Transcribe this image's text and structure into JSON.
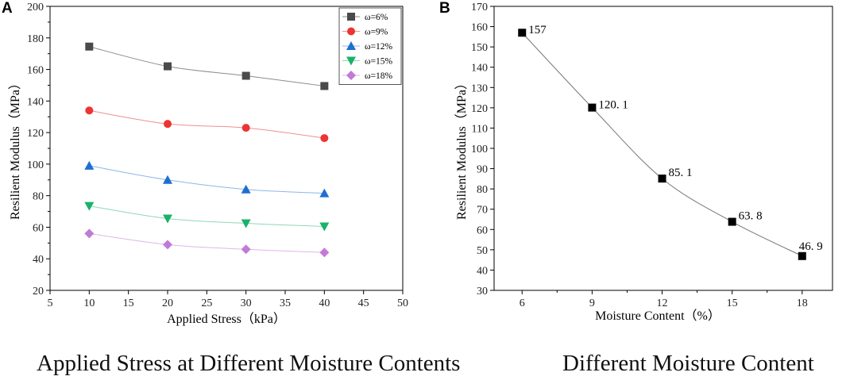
{
  "chart_data": [
    {
      "panel_label": "A",
      "type": "line",
      "xlabel": "Applied Stress（kPa）",
      "ylabel": "Resilient Modulus（MPa）",
      "xlim": [
        5,
        50
      ],
      "ylim": [
        20,
        200
      ],
      "xticks": [
        5,
        10,
        15,
        20,
        25,
        30,
        35,
        40,
        45,
        50
      ],
      "yticks": [
        20,
        40,
        60,
        80,
        100,
        120,
        140,
        160,
        180,
        200
      ],
      "x": [
        10,
        20,
        30,
        40
      ],
      "legend_position": "top-right",
      "series": [
        {
          "name": "ω=6%",
          "marker": "square",
          "color": "#4a4a4a",
          "line_color": "#8c8c8c",
          "values": [
            174.5,
            162,
            156,
            149.5
          ]
        },
        {
          "name": "ω=9%",
          "marker": "circle",
          "color": "#ee3333",
          "line_color": "#f09090",
          "values": [
            134,
            125.5,
            123,
            116.5
          ]
        },
        {
          "name": "ω=12%",
          "marker": "triangle-up",
          "color": "#1f6fd1",
          "line_color": "#8fb5e8",
          "values": [
            99,
            90,
            84,
            81.5
          ]
        },
        {
          "name": "ω=15%",
          "marker": "triangle-down",
          "color": "#19b26b",
          "line_color": "#8fd9b4",
          "values": [
            73.5,
            65.5,
            62.5,
            60.5
          ]
        },
        {
          "name": "ω=18%",
          "marker": "diamond",
          "color": "#c27ad6",
          "line_color": "#dfb6ea",
          "values": [
            56,
            49,
            46,
            44
          ]
        }
      ]
    },
    {
      "panel_label": "B",
      "type": "line",
      "xlabel": "Moisture Content（%）",
      "ylabel": "Resilient Modulus（MPa）",
      "xlim": [
        4.8,
        19.3
      ],
      "ylim": [
        30,
        170
      ],
      "xticks": [
        6,
        9,
        12,
        15,
        18
      ],
      "yticks": [
        30,
        40,
        50,
        60,
        70,
        80,
        90,
        100,
        110,
        120,
        130,
        140,
        150,
        160,
        170
      ],
      "x": [
        6,
        9,
        12,
        15,
        18
      ],
      "series": [
        {
          "name": "Resilient Modulus",
          "marker": "square",
          "color": "#000000",
          "line_color": "#777777",
          "values": [
            157,
            120.1,
            85.1,
            63.8,
            46.9
          ],
          "labels": [
            "157",
            "120. 1",
            "85. 1",
            "63. 8",
            "46. 9"
          ]
        }
      ]
    }
  ],
  "captions": {
    "left": "Applied Stress at Different Moisture Contents",
    "right": "Different Moisture Content"
  }
}
